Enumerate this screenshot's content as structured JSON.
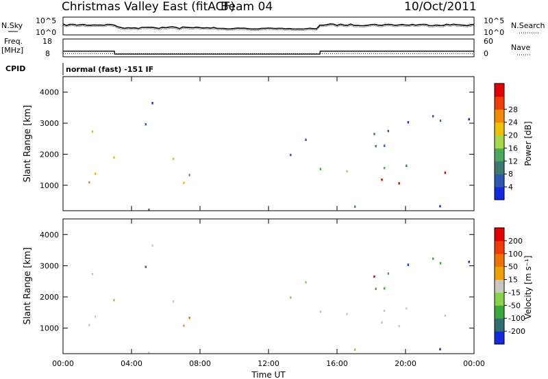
{
  "header": {
    "title": "Christmas Valley East (fitACF)",
    "beam": "Beam 04",
    "date": "10/Oct/2011"
  },
  "top_panels": {
    "nsky_label": "N.Sky",
    "nsearch_label": "N.Search",
    "nsky_ticks": [
      "10^5",
      "10^0"
    ],
    "freq_label_1": "Freq.",
    "freq_label_2": "[MHz]",
    "freq_ticks": [
      "18",
      "8"
    ],
    "nave_label": "Nave",
    "nave_ticks": [
      "60",
      "0"
    ],
    "cpid_label": "CPID",
    "cpid_text": "normal (fast) -151 IF"
  },
  "chart_data": [
    {
      "type": "line",
      "title": "",
      "x": [
        "00:00",
        "03:00",
        "03:01",
        "15:00",
        "15:01",
        "24:00"
      ],
      "series": [
        {
          "name": "Freq.",
          "values": [
            10.8,
            10.8,
            8.8,
            8.8,
            10.8,
            10.8
          ]
        },
        {
          "name": "Nave",
          "values": [
            12,
            12,
            12,
            12,
            12,
            12
          ]
        }
      ]
    },
    {
      "type": "heatmap",
      "xlabel": "Time UT",
      "ylabel": "Slant Range [km]",
      "x_ticks": [
        "00:00",
        "04:00",
        "08:00",
        "12:00",
        "16:00",
        "20:00",
        "00:00"
      ],
      "y_ticks": [
        "1000",
        "2000",
        "3000",
        "4000"
      ],
      "xlim": [
        0,
        24
      ],
      "ylim": [
        180,
        4500
      ],
      "colorbar": {
        "label": "Power [dB]",
        "ticks": [
          "4",
          "8",
          "12",
          "16",
          "20",
          "24",
          "28"
        ],
        "colors": [
          "#1428e0",
          "#2e58b0",
          "#3c7a6e",
          "#4aa85a",
          "#a8d84a",
          "#f0c000",
          "#f08a00",
          "#f03c00",
          "#e00000"
        ]
      }
    },
    {
      "type": "heatmap",
      "xlabel": "Time UT",
      "ylabel": "Slant Range [km]",
      "x_ticks": [
        "00:00",
        "04:00",
        "08:00",
        "12:00",
        "16:00",
        "20:00",
        "00:00"
      ],
      "y_ticks": [
        "1000",
        "2000",
        "3000",
        "4000"
      ],
      "xlim": [
        0,
        24
      ],
      "ylim": [
        180,
        4500
      ],
      "colorbar": {
        "label": "Velocity [m s⁻¹]",
        "ticks": [
          "200",
          "100",
          "50",
          "15",
          "-15",
          "-50",
          "-100",
          "-200"
        ],
        "colors": [
          "#1428e0",
          "#2e6e6e",
          "#3ca83c",
          "#8ad24a",
          "#c8c8c0",
          "#f0a000",
          "#f07000",
          "#f03c00",
          "#e00000"
        ]
      }
    }
  ]
}
